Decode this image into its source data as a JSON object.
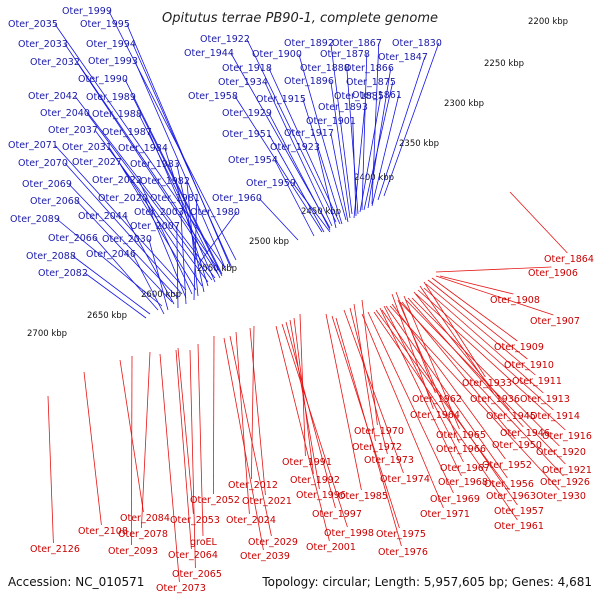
{
  "title": "Opitutus terrae PB90-1, complete genome",
  "accession": "Accession: NC_010571",
  "topology": "Topology: circular; Length: 5,957,605 bp; Genes: 4,681",
  "colors": {
    "forward": "#1414e6",
    "reverse": "#e61414",
    "backbone": "#888888",
    "tick": "#2a9a2a"
  },
  "kbp_labels": [
    "2200 kbp",
    "2250 kbp",
    "2300 kbp",
    "2350 kbp",
    "2400 kbp",
    "2450 kbp",
    "2500 kbp",
    "2550 kbp",
    "2600 kbp",
    "2650 kbp",
    "2700 kbp"
  ],
  "blue_labels": [
    "Oter_1999",
    "Oter_2035",
    "Oter_1995",
    "Oter_2033",
    "Oter_1994",
    "Oter_2032",
    "Oter_1993",
    "Oter_1990",
    "Oter_2042",
    "Oter_1989",
    "Oter_2040",
    "Oter_1988",
    "Oter_2037",
    "Oter_1987",
    "Oter_2071",
    "Oter_2031",
    "Oter_1984",
    "Oter_2070",
    "Oter_2027",
    "Oter_1983",
    "Oter_2069",
    "Oter_2022",
    "Oter_1982",
    "Oter_2068",
    "Oter_2020",
    "Oter_1981",
    "Oter_2089",
    "Oter_2044",
    "Oter_2003",
    "Oter_1980",
    "Oter_2066",
    "Oter_2007",
    "Oter_2030",
    "Oter_2088",
    "Oter_2046",
    "Oter_2082",
    "Oter_1922",
    "Oter_1892",
    "Oter_1867",
    "Oter_1830",
    "Oter_1944",
    "Oter_1900",
    "Oter_1878",
    "Oter_1847",
    "Oter_1918",
    "Oter_1888",
    "Oter_1866",
    "Oter_1934",
    "Oter_1896",
    "Oter_1875",
    "Oter_1861",
    "Oter_1958",
    "Oter_1915",
    "Oter_1885",
    "Oter_1929",
    "Oter_1893",
    "Oter_1901",
    "Oter_1951",
    "Oter_1917",
    "Oter_1923",
    "Oter_1954",
    "Oter_1959",
    "Oter_1960"
  ],
  "red_labels": [
    "Oter_1864",
    "Oter_1906",
    "Oter_1908",
    "Oter_1907",
    "Oter_1909",
    "Oter_1910",
    "Oter_1933",
    "Oter_1911",
    "Oter_1936",
    "Oter_1913",
    "Oter_1962",
    "Oter_1914",
    "Oter_1964",
    "Oter_1945",
    "Oter_1970",
    "Oter_1965",
    "Oter_1946",
    "Oter_1916",
    "Oter_1972",
    "Oter_1966",
    "Oter_1950",
    "Oter_1920",
    "Oter_1991",
    "Oter_1973",
    "Oter_1952",
    "Oter_1921",
    "Oter_1967",
    "Oter_1974",
    "Oter_1968",
    "Oter_1956",
    "Oter_1926",
    "Oter_1992",
    "Oter_1963",
    "Oter_1930",
    "Oter_2012",
    "Oter_1996",
    "Oter_1985",
    "Oter_1969",
    "Oter_1957",
    "Oter_2052",
    "Oter_2021",
    "Oter_1997",
    "Oter_1971",
    "Oter_2084",
    "Oter_2053",
    "Oter_2024",
    "Oter_1961",
    "Oter_1998",
    "Oter_1975",
    "Oter_2108",
    "Oter_2078",
    "Oter_2029",
    "Oter_2001",
    "Oter_2126",
    "groEL",
    "Oter_1976",
    "Oter_2093",
    "Oter_2064",
    "Oter_2039",
    "Oter_2065",
    "Oter_2073"
  ]
}
